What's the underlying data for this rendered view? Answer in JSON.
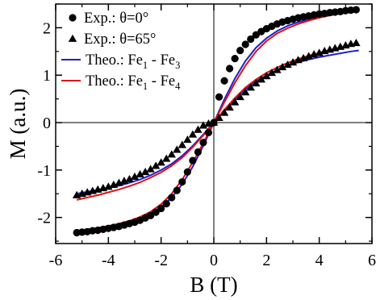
{
  "chart_data": {
    "type": "scatter",
    "title": "",
    "xlabel": "B (T)",
    "ylabel": "M (a.u.)",
    "xlim": [
      -6,
      6
    ],
    "ylim": [
      -2.55,
      2.5
    ],
    "xticks": [
      -6,
      -4,
      -2,
      0,
      2,
      4,
      6
    ],
    "yticks": [
      -2,
      -1,
      0,
      1,
      2
    ],
    "xtick_labels": [
      "-6",
      "-4",
      "-2",
      "0",
      "2",
      "4",
      "6"
    ],
    "ytick_labels": [
      "-2",
      "-1",
      "0",
      "1",
      "2"
    ],
    "grid": false,
    "zero_lines": true,
    "legend_position": "top-left",
    "series": [
      {
        "name": "Exp.: θ=0°",
        "kind": "marker",
        "marker": "circle",
        "color": "#000000",
        "x": [
          -5.2,
          -5.0,
          -4.8,
          -4.6,
          -4.4,
          -4.2,
          -4.0,
          -3.8,
          -3.6,
          -3.4,
          -3.2,
          -3.0,
          -2.8,
          -2.6,
          -2.4,
          -2.2,
          -2.0,
          -1.8,
          -1.6,
          -1.4,
          -1.2,
          -1.0,
          -0.8,
          -0.6,
          -0.4,
          -0.2,
          0.0,
          0.2,
          0.4,
          0.6,
          0.8,
          1.0,
          1.2,
          1.4,
          1.6,
          1.8,
          2.0,
          2.2,
          2.4,
          2.6,
          2.8,
          3.0,
          3.2,
          3.4,
          3.6,
          3.8,
          4.0,
          4.2,
          4.4,
          4.6,
          4.8,
          5.0,
          5.2,
          5.4
        ],
        "y": [
          -2.32,
          -2.31,
          -2.3,
          -2.28,
          -2.27,
          -2.25,
          -2.23,
          -2.21,
          -2.19,
          -2.16,
          -2.13,
          -2.1,
          -2.06,
          -2.01,
          -1.96,
          -1.89,
          -1.81,
          -1.71,
          -1.58,
          -1.43,
          -1.25,
          -1.04,
          -0.8,
          -0.62,
          -0.42,
          -0.21,
          0.0,
          0.54,
          0.88,
          1.14,
          1.35,
          1.52,
          1.65,
          1.76,
          1.85,
          1.92,
          1.98,
          2.03,
          2.08,
          2.12,
          2.15,
          2.18,
          2.21,
          2.23,
          2.25,
          2.27,
          2.29,
          2.3,
          2.32,
          2.33,
          2.34,
          2.36,
          2.37,
          2.38
        ]
      },
      {
        "name": "Exp.: θ=65°",
        "kind": "marker",
        "marker": "triangle",
        "color": "#000000",
        "x": [
          -5.2,
          -5.0,
          -4.8,
          -4.6,
          -4.4,
          -4.2,
          -4.0,
          -3.8,
          -3.6,
          -3.4,
          -3.2,
          -3.0,
          -2.8,
          -2.6,
          -2.4,
          -2.2,
          -2.0,
          -1.8,
          -1.6,
          -1.4,
          -1.2,
          -1.0,
          -0.8,
          -0.6,
          -0.4,
          -0.2,
          0.0,
          0.2,
          0.4,
          0.6,
          0.8,
          1.0,
          1.2,
          1.4,
          1.6,
          1.8,
          2.0,
          2.2,
          2.4,
          2.6,
          2.8,
          3.0,
          3.2,
          3.4,
          3.6,
          3.8,
          4.0,
          4.2,
          4.4,
          4.6,
          4.8,
          5.0,
          5.2,
          5.4
        ],
        "y": [
          -1.53,
          -1.5,
          -1.47,
          -1.44,
          -1.41,
          -1.38,
          -1.35,
          -1.31,
          -1.27,
          -1.23,
          -1.19,
          -1.14,
          -1.09,
          -1.04,
          -0.98,
          -0.91,
          -0.84,
          -0.76,
          -0.67,
          -0.57,
          -0.47,
          -0.36,
          -0.25,
          -0.15,
          -0.06,
          -0.02,
          0.0,
          0.1,
          0.21,
          0.32,
          0.43,
          0.54,
          0.64,
          0.74,
          0.83,
          0.91,
          0.98,
          1.05,
          1.11,
          1.17,
          1.22,
          1.27,
          1.32,
          1.36,
          1.4,
          1.44,
          1.47,
          1.51,
          1.54,
          1.57,
          1.6,
          1.63,
          1.66,
          1.68
        ]
      },
      {
        "name": "Theo.: Fe1 - Fe3",
        "legend_label_main": "Theo.: Fe",
        "legend_sub_1": "1",
        "legend_label_mid": " - Fe",
        "legend_sub_2": "3",
        "kind": "line",
        "color": "#1f1fd0",
        "x": [
          -5.2,
          -4.8,
          -4.4,
          -4.0,
          -3.6,
          -3.2,
          -2.8,
          -2.4,
          -2.0,
          -1.6,
          -1.2,
          -0.8,
          -0.4,
          0.0,
          0.4,
          0.8,
          1.2,
          1.6,
          2.0,
          2.4,
          2.8,
          3.2,
          3.6,
          4.0,
          4.4,
          4.8,
          5.2,
          5.5
        ],
        "y": [
          -2.3,
          -2.28,
          -2.25,
          -2.21,
          -2.17,
          -2.11,
          -2.03,
          -1.92,
          -1.78,
          -1.58,
          -1.3,
          -0.93,
          -0.49,
          0.0,
          0.49,
          0.93,
          1.3,
          1.58,
          1.78,
          1.93,
          2.04,
          2.12,
          2.18,
          2.23,
          2.27,
          2.3,
          2.33,
          2.34
        ],
        "secondary_y": [
          -1.5,
          -1.46,
          -1.42,
          -1.38,
          -1.33,
          -1.27,
          -1.2,
          -1.11,
          -1.0,
          -0.87,
          -0.7,
          -0.49,
          -0.25,
          0.0,
          0.25,
          0.49,
          0.7,
          0.87,
          1.0,
          1.11,
          1.2,
          1.27,
          1.33,
          1.38,
          1.42,
          1.46,
          1.5,
          1.52
        ]
      },
      {
        "name": "Theo.: Fe1 - Fe4",
        "legend_label_main": "Theo.: Fe",
        "legend_sub_1": "1",
        "legend_label_mid": " - Fe",
        "legend_sub_2": "4",
        "kind": "line",
        "color": "#e01010",
        "x": [
          -5.2,
          -4.8,
          -4.4,
          -4.0,
          -3.6,
          -3.2,
          -2.8,
          -2.4,
          -2.0,
          -1.6,
          -1.2,
          -0.8,
          -0.4,
          0.0,
          0.4,
          0.8,
          1.2,
          1.6,
          2.0,
          2.4,
          2.8,
          3.2,
          3.6,
          4.0,
          4.4,
          4.8,
          5.2,
          5.5
        ],
        "y": [
          -2.28,
          -2.25,
          -2.22,
          -2.18,
          -2.13,
          -2.07,
          -1.99,
          -1.88,
          -1.72,
          -1.5,
          -1.2,
          -0.84,
          -0.43,
          0.0,
          0.43,
          0.84,
          1.2,
          1.5,
          1.72,
          1.88,
          1.99,
          2.08,
          2.15,
          2.21,
          2.26,
          2.3,
          2.33,
          2.36
        ],
        "secondary_y": [
          -1.63,
          -1.58,
          -1.53,
          -1.47,
          -1.41,
          -1.34,
          -1.26,
          -1.16,
          -1.05,
          -0.91,
          -0.74,
          -0.52,
          -0.27,
          0.0,
          0.27,
          0.52,
          0.74,
          0.91,
          1.05,
          1.16,
          1.26,
          1.34,
          1.41,
          1.47,
          1.53,
          1.58,
          1.63,
          1.66
        ]
      }
    ]
  }
}
